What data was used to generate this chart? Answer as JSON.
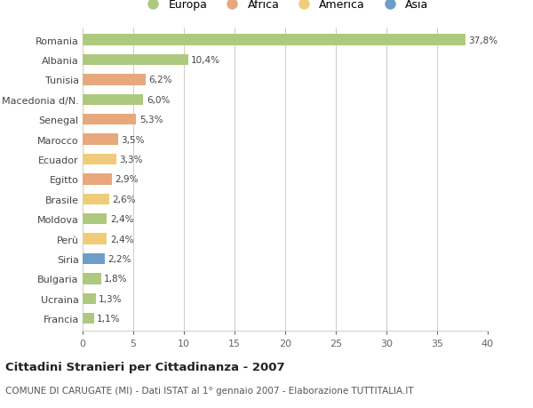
{
  "countries": [
    "Romania",
    "Albania",
    "Tunisia",
    "Macedonia d/N.",
    "Senegal",
    "Marocco",
    "Ecuador",
    "Egitto",
    "Brasile",
    "Moldova",
    "Perù",
    "Siria",
    "Bulgaria",
    "Ucraina",
    "Francia"
  ],
  "values": [
    37.8,
    10.4,
    6.2,
    6.0,
    5.3,
    3.5,
    3.3,
    2.9,
    2.6,
    2.4,
    2.4,
    2.2,
    1.8,
    1.3,
    1.1
  ],
  "labels": [
    "37,8%",
    "10,4%",
    "6,2%",
    "6,0%",
    "5,3%",
    "3,5%",
    "3,3%",
    "2,9%",
    "2,6%",
    "2,4%",
    "2,4%",
    "2,2%",
    "1,8%",
    "1,3%",
    "1,1%"
  ],
  "colors": [
    "#adc97e",
    "#adc97e",
    "#e8a87c",
    "#adc97e",
    "#e8a87c",
    "#e8a87c",
    "#f0cc7a",
    "#e8a87c",
    "#f0cc7a",
    "#adc97e",
    "#f0cc7a",
    "#6e9ec8",
    "#adc97e",
    "#adc97e",
    "#adc97e"
  ],
  "legend_labels": [
    "Europa",
    "Africa",
    "America",
    "Asia"
  ],
  "legend_colors": [
    "#adc97e",
    "#e8a87c",
    "#f0cc7a",
    "#6e9ec8"
  ],
  "xlim": [
    0,
    40
  ],
  "xticks": [
    0,
    5,
    10,
    15,
    20,
    25,
    30,
    35,
    40
  ],
  "title": "Cittadini Stranieri per Cittadinanza - 2007",
  "subtitle": "COMUNE DI CARUGATE (MI) - Dati ISTAT al 1° gennaio 2007 - Elaborazione TUTTITALIA.IT",
  "bg_color": "#ffffff",
  "grid_color": "#cccccc",
  "bar_height": 0.55
}
